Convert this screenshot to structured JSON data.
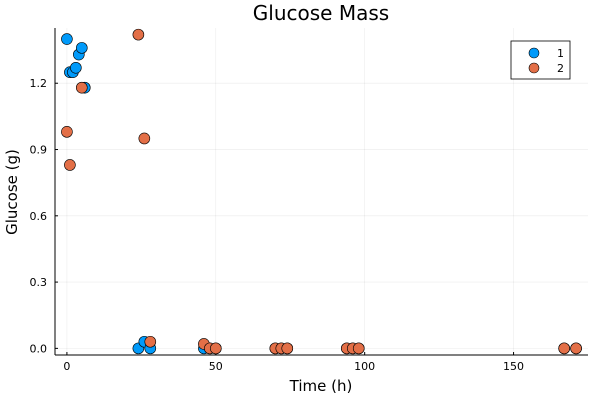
{
  "chart_data": {
    "type": "scatter",
    "title": "Glucose Mass",
    "xlabel": "Time (h)",
    "ylabel": "Glucose (g)",
    "xlim": [
      -4,
      175
    ],
    "ylim": [
      -0.03,
      1.45
    ],
    "xticks": [
      0,
      50,
      100,
      150
    ],
    "yticks": [
      0.0,
      0.3,
      0.6,
      0.9,
      1.2
    ],
    "ytick_labels": [
      "0.0",
      "0.3",
      "0.6",
      "0.9",
      "1.2"
    ],
    "grid": true,
    "legend_position": "top-right",
    "series": [
      {
        "name": "1",
        "color": "#009AFA",
        "points": [
          [
            0,
            1.4
          ],
          [
            1,
            1.25
          ],
          [
            2,
            1.25
          ],
          [
            3,
            1.27
          ],
          [
            4,
            1.33
          ],
          [
            5,
            1.36
          ],
          [
            6,
            1.18
          ],
          [
            24,
            0.0
          ],
          [
            26,
            0.03
          ],
          [
            28,
            0.0
          ],
          [
            46,
            0.0
          ],
          [
            48,
            0.0
          ],
          [
            50,
            0.0
          ],
          [
            70,
            0.0
          ],
          [
            72,
            0.0
          ],
          [
            74,
            0.0
          ],
          [
            94,
            0.0
          ],
          [
            96,
            0.0
          ],
          [
            98,
            0.0
          ],
          [
            167,
            0.0
          ],
          [
            171,
            0.0
          ]
        ]
      },
      {
        "name": "2",
        "color": "#E36F47",
        "points": [
          [
            0,
            0.98
          ],
          [
            1,
            0.83
          ],
          [
            5,
            1.18
          ],
          [
            24,
            1.42
          ],
          [
            26,
            0.95
          ],
          [
            28,
            0.03
          ],
          [
            46,
            0.02
          ],
          [
            48,
            0.0
          ],
          [
            50,
            0.0
          ],
          [
            70,
            0.0
          ],
          [
            72,
            0.0
          ],
          [
            74,
            0.0
          ],
          [
            94,
            0.0
          ],
          [
            96,
            0.0
          ],
          [
            98,
            0.0
          ],
          [
            167,
            0.0
          ],
          [
            171,
            0.0
          ]
        ]
      }
    ]
  }
}
